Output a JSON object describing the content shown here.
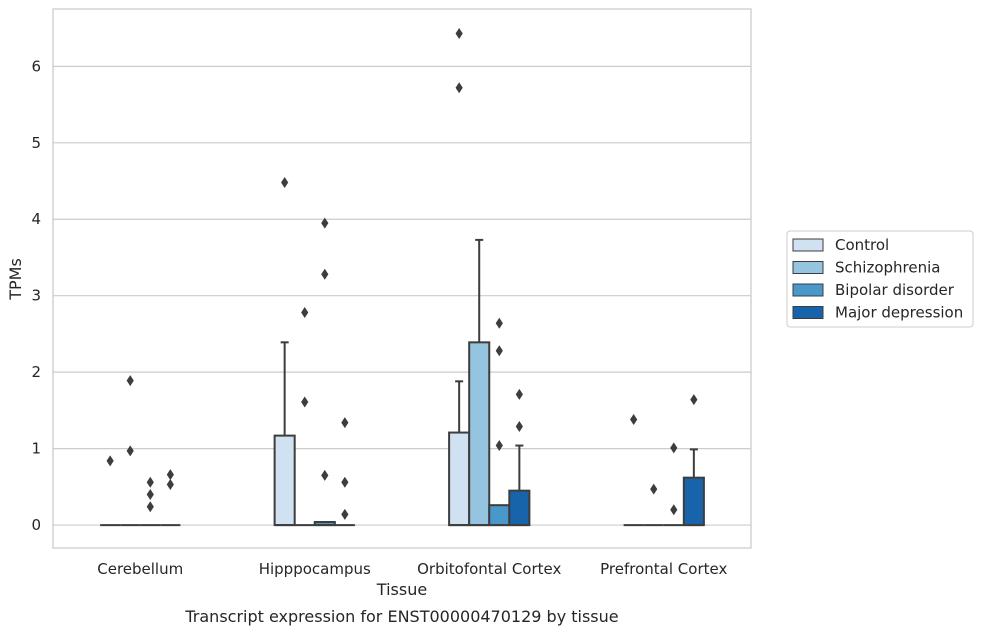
{
  "chart_data": {
    "type": "box",
    "xlabel": "Tissue",
    "ylabel": "TPMs",
    "caption": "Transcript expression for ENST00000470129 by tissue",
    "ylim": [
      -0.3,
      6.75
    ],
    "yticks": [
      0,
      1,
      2,
      3,
      4,
      5,
      6
    ],
    "grid": "horizontal",
    "legend_position": "right",
    "categories": [
      "Cerebellum",
      "Hipppocampus",
      "Orbitofontal Cortex",
      "Prefrontal Cortex"
    ],
    "series": [
      {
        "name": "Control",
        "color": "#d0e1f2",
        "boxes": [
          {
            "q1": 0,
            "median": 0,
            "q3": 0,
            "whisker_low": 0,
            "whisker_high": 0,
            "outliers": [
              0.84
            ]
          },
          {
            "q1": 0,
            "median": 0,
            "q3": 1.17,
            "whisker_low": 0,
            "whisker_high": 2.39,
            "outliers": [
              4.48
            ]
          },
          {
            "q1": 0,
            "median": 0,
            "q3": 1.21,
            "whisker_low": 0,
            "whisker_high": 1.88,
            "outliers": [
              5.72,
              6.43
            ]
          },
          {
            "q1": 0,
            "median": 0,
            "q3": 0,
            "whisker_low": 0,
            "whisker_high": 0,
            "outliers": [
              1.38
            ]
          }
        ]
      },
      {
        "name": "Schizophrenia",
        "color": "#94c4df",
        "boxes": [
          {
            "q1": 0,
            "median": 0,
            "q3": 0,
            "whisker_low": 0,
            "whisker_high": 0,
            "outliers": [
              0.97,
              1.89
            ]
          },
          {
            "q1": 0,
            "median": 0,
            "q3": 0,
            "whisker_low": 0,
            "whisker_high": 0,
            "outliers": [
              1.61,
              2.78
            ]
          },
          {
            "q1": 0,
            "median": 0,
            "q3": 2.39,
            "whisker_low": 0,
            "whisker_high": 3.73,
            "outliers": []
          },
          {
            "q1": 0,
            "median": 0,
            "q3": 0,
            "whisker_low": 0,
            "whisker_high": 0,
            "outliers": [
              0.47
            ]
          }
        ]
      },
      {
        "name": "Bipolar disorder",
        "color": "#4a98c9",
        "boxes": [
          {
            "q1": 0,
            "median": 0,
            "q3": 0,
            "whisker_low": 0,
            "whisker_high": 0,
            "outliers": [
              0.24,
              0.4,
              0.56
            ]
          },
          {
            "q1": 0,
            "median": 0,
            "q3": 0.04,
            "whisker_low": 0,
            "whisker_high": 0.04,
            "outliers": [
              0.65,
              3.28,
              3.95
            ]
          },
          {
            "q1": 0,
            "median": 0,
            "q3": 0.26,
            "whisker_low": 0,
            "whisker_high": 0.26,
            "outliers": [
              1.04,
              2.28,
              2.64
            ]
          },
          {
            "q1": 0,
            "median": 0,
            "q3": 0,
            "whisker_low": 0,
            "whisker_high": 0,
            "outliers": [
              0.2,
              1.01
            ]
          }
        ]
      },
      {
        "name": "Major depression",
        "color": "#1764ab",
        "boxes": [
          {
            "q1": 0,
            "median": 0,
            "q3": 0,
            "whisker_low": 0,
            "whisker_high": 0,
            "outliers": [
              0.53,
              0.66
            ]
          },
          {
            "q1": 0,
            "median": 0,
            "q3": 0,
            "whisker_low": 0,
            "whisker_high": 0,
            "outliers": [
              0.14,
              0.56,
              1.34
            ]
          },
          {
            "q1": 0,
            "median": 0,
            "q3": 0.45,
            "whisker_low": 0,
            "whisker_high": 1.04,
            "outliers": [
              1.29,
              1.71
            ]
          },
          {
            "q1": 0,
            "median": 0,
            "q3": 0.62,
            "whisker_low": 0,
            "whisker_high": 0.99,
            "outliers": [
              1.64
            ]
          }
        ]
      }
    ]
  }
}
